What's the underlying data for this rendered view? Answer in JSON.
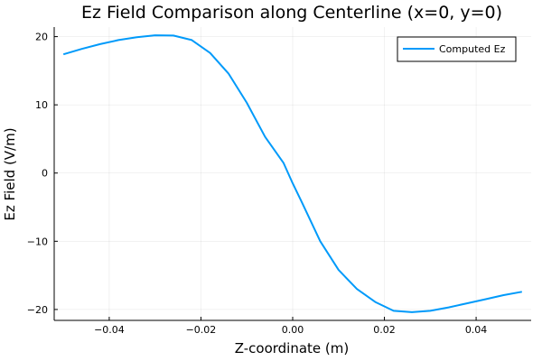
{
  "chart_data": {
    "type": "line",
    "title": "Ez Field Comparison along Centerline (x=0, y=0)",
    "xlabel": "Z-coordinate (m)",
    "ylabel": "Ez Field (V/m)",
    "xlim": [
      -0.052,
      0.052
    ],
    "ylim": [
      -21.6,
      21.4
    ],
    "grid": true,
    "legend_position": "top-right",
    "x_ticks": [
      -0.04,
      -0.02,
      0.0,
      0.02,
      0.04
    ],
    "x_tick_labels": [
      "−0.04",
      "−0.02",
      "0.00",
      "0.02",
      "0.04"
    ],
    "y_ticks": [
      -20,
      -10,
      0,
      10,
      20
    ],
    "y_tick_labels": [
      "−20",
      "−10",
      "0",
      "10",
      "20"
    ],
    "series": [
      {
        "name": "Computed Ez",
        "color": "#009AFA",
        "x": [
          -0.05,
          -0.046,
          -0.042,
          -0.038,
          -0.034,
          -0.03,
          -0.026,
          -0.022,
          -0.018,
          -0.014,
          -0.01,
          -0.006,
          -0.002,
          0.0,
          0.002,
          0.006,
          0.01,
          0.014,
          0.018,
          0.022,
          0.026,
          0.03,
          0.034,
          0.038,
          0.042,
          0.046,
          0.05
        ],
        "y": [
          17.4,
          18.2,
          18.9,
          19.5,
          19.9,
          20.2,
          20.15,
          19.5,
          17.6,
          14.6,
          10.3,
          5.3,
          1.5,
          -1.5,
          -4.3,
          -10.0,
          -14.2,
          -17.0,
          -18.9,
          -20.2,
          -20.4,
          -20.2,
          -19.7,
          -19.1,
          -18.5,
          -17.9,
          -17.4
        ]
      }
    ]
  }
}
